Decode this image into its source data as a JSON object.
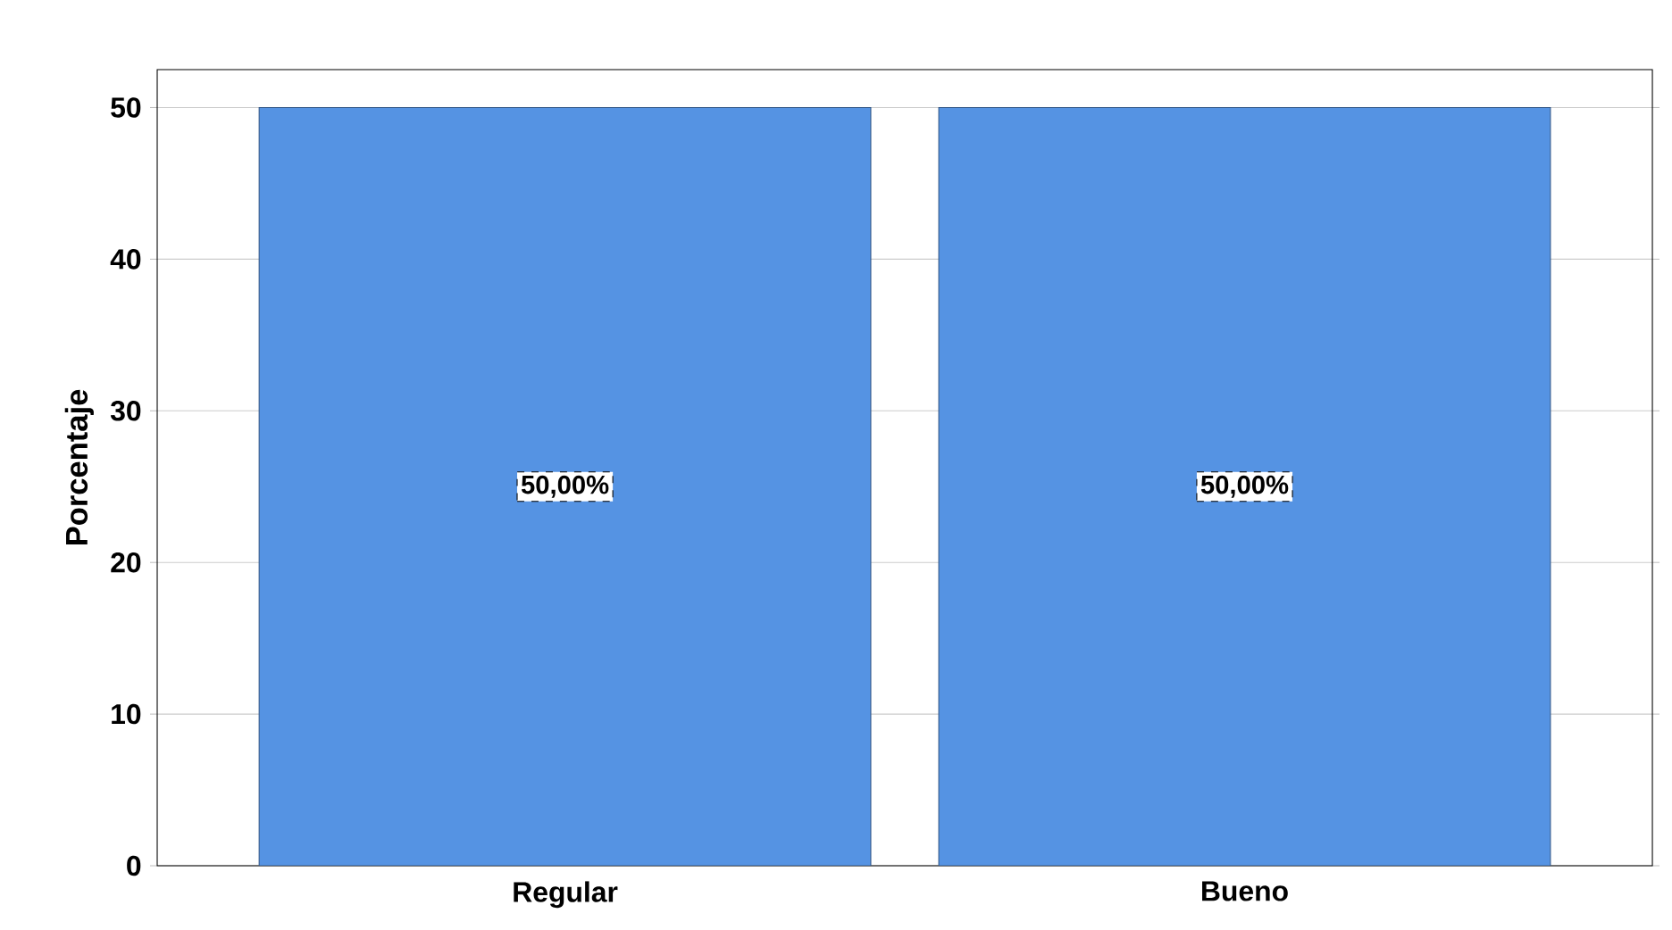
{
  "chart_data": {
    "type": "bar",
    "ylabel": "Porcentaje",
    "categories": [
      "Regular",
      "Bueno"
    ],
    "values": [
      50,
      50
    ],
    "color": "#5593e3",
    "value_labels": [
      "50,00%",
      "50,00%"
    ],
    "ylim": [
      0,
      52.5
    ],
    "yticks": [
      0,
      10,
      20,
      30,
      40,
      50
    ],
    "grid": "y"
  }
}
